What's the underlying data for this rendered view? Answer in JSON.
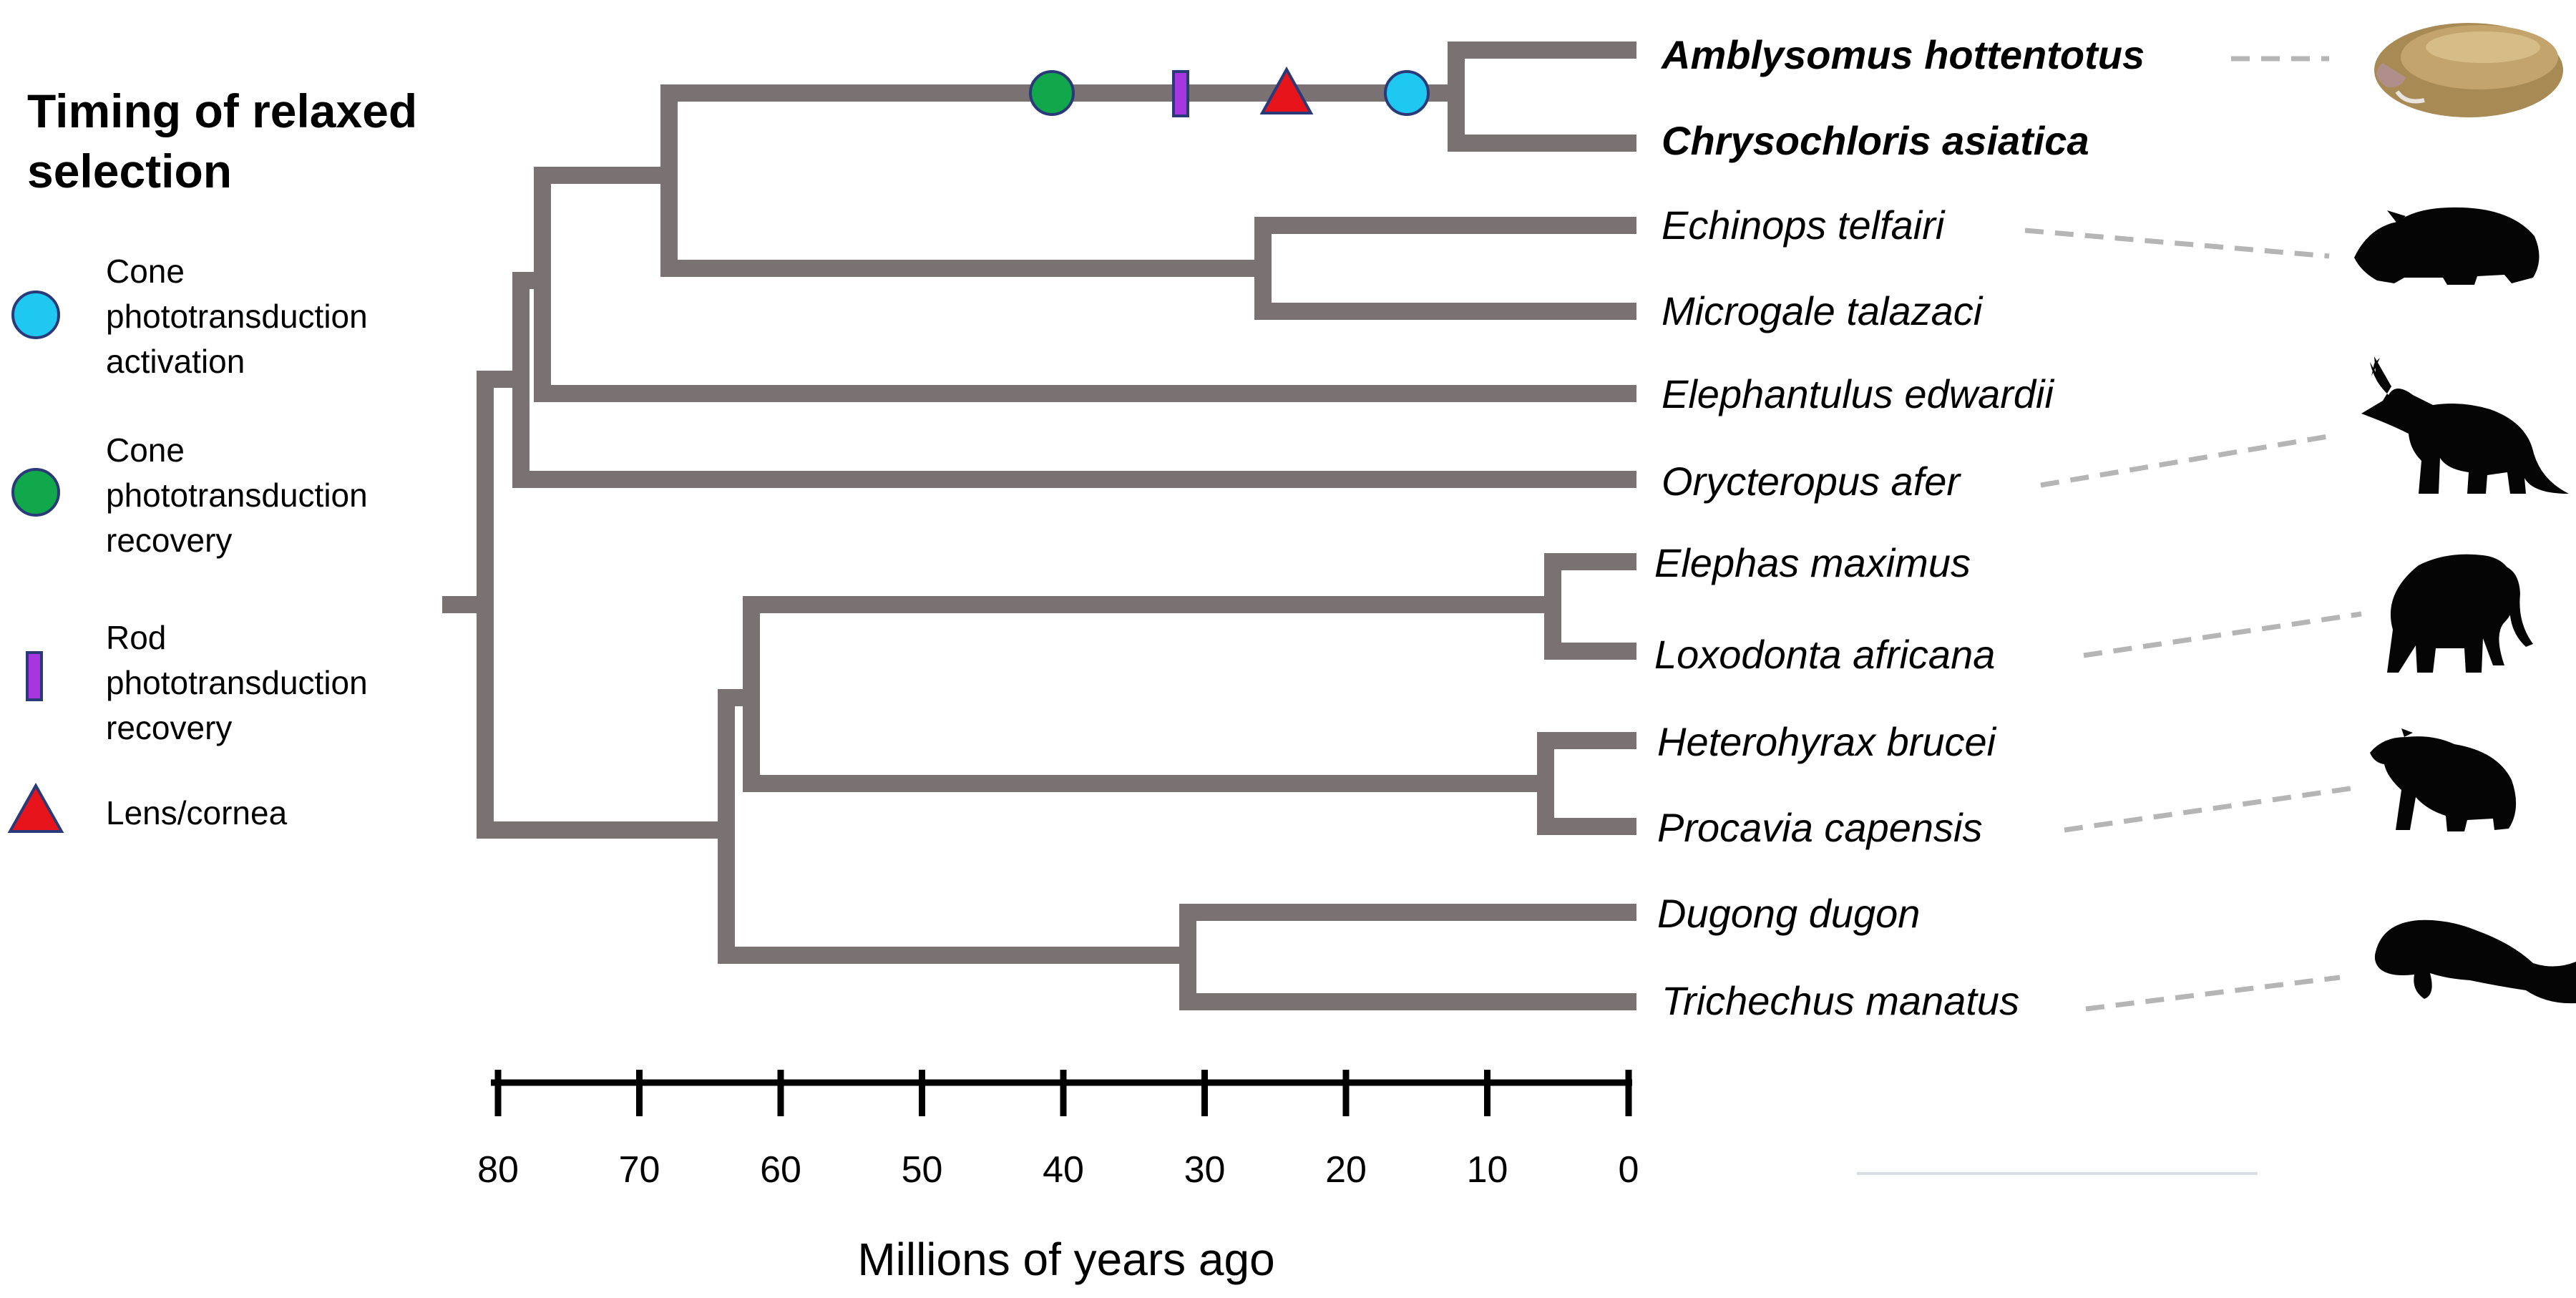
{
  "legend": {
    "title_line1": "Timing of relaxed",
    "title_line2": "selection",
    "items": [
      {
        "key": "cone-activation",
        "symbol": "circle",
        "color": "#1ec8f0",
        "lines": [
          "Cone",
          "phototransduction",
          "activation"
        ]
      },
      {
        "key": "cone-recovery",
        "symbol": "circle",
        "color": "#10a84a",
        "lines": [
          "Cone",
          "phototransduction",
          "recovery"
        ]
      },
      {
        "key": "rod-recovery",
        "symbol": "bar",
        "color": "#a536e0",
        "lines": [
          "Rod",
          "phototransduction",
          "recovery"
        ]
      },
      {
        "key": "lens-cornea",
        "symbol": "triangle",
        "color": "#e8141c",
        "lines": [
          "Lens/cornea"
        ]
      }
    ]
  },
  "taxa": [
    {
      "name": "Amblysomus hottentotus",
      "bold": true
    },
    {
      "name": "Chrysochloris asiatica",
      "bold": true
    },
    {
      "name": "Echinops telfairi",
      "bold": false
    },
    {
      "name": "Microgale talazaci",
      "bold": false
    },
    {
      "name": "Elephantulus edwardii",
      "bold": false
    },
    {
      "name": "Orycteropus afer",
      "bold": false
    },
    {
      "name": "Elephas maximus",
      "bold": false
    },
    {
      "name": "Loxodonta africana",
      "bold": false
    },
    {
      "name": "Heterohyrax brucei",
      "bold": false
    },
    {
      "name": "Procavia capensis",
      "bold": false
    },
    {
      "name": "Dugong dugon",
      "bold": false
    },
    {
      "name": "Trichechus manatus",
      "bold": false
    }
  ],
  "markers_mya": {
    "cone_recovery": 41,
    "rod_recovery": 32,
    "lens_cornea": 24,
    "cone_activation": 15
  },
  "axis": {
    "title": "Millions of years ago",
    "ticks": [
      80,
      70,
      60,
      50,
      40,
      30,
      20,
      10,
      0
    ]
  },
  "colors": {
    "branch": "#7a7172",
    "outline": "#2a3a78",
    "leader": "#b5b5b5"
  }
}
